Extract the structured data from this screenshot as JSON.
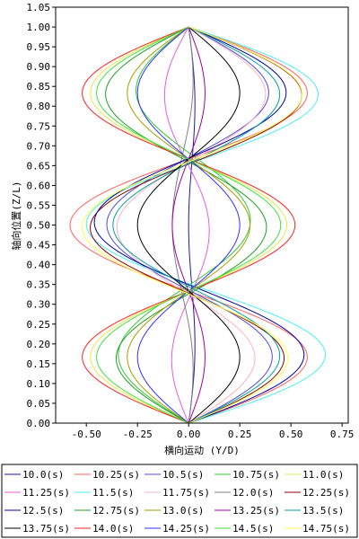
{
  "chart_data": {
    "type": "line",
    "title": "",
    "xlabel": "横向运动 (Y/D)",
    "ylabel": "轴向位置(Z/L)",
    "xlim": [
      -0.65,
      0.78
    ],
    "ylim": [
      0.0,
      1.05
    ],
    "xticks": [
      "-0.50",
      "-0.25",
      "0.00",
      "0.25",
      "0.50",
      "0.75"
    ],
    "xtick_values": [
      -0.5,
      -0.25,
      0.0,
      0.25,
      0.5,
      0.75
    ],
    "yticks": [
      "0.00",
      "0.05",
      "0.10",
      "0.15",
      "0.20",
      "0.25",
      "0.30",
      "0.35",
      "0.40",
      "0.45",
      "0.50",
      "0.55",
      "0.60",
      "0.65",
      "0.70",
      "0.75",
      "0.80",
      "0.85",
      "0.90",
      "0.95",
      "1.00",
      "1.05"
    ],
    "ytick_values": [
      0,
      0.05,
      0.1,
      0.15,
      0.2,
      0.25,
      0.3,
      0.35,
      0.4,
      0.45,
      0.5,
      0.55,
      0.6,
      0.65,
      0.7,
      0.75,
      0.8,
      0.85,
      0.9,
      0.95,
      1.0,
      1.05
    ],
    "grid": false,
    "legend_position": "bottom",
    "curve_model": "y = a1*sin(pi*z) + a2*sin(2*pi*z) + a3*sin(3*pi*z)",
    "series": [
      {
        "name": "10.0(s)",
        "color": "#1a1aa8",
        "a": [
          0.02,
          0.0,
          0.02
        ]
      },
      {
        "name": "10.25(s)",
        "color": "#ff6060",
        "a": [
          0.0,
          0.0,
          0.58
        ]
      },
      {
        "name": "10.5(s)",
        "color": "#4b4bd8",
        "a": [
          0.0,
          0.01,
          0.4
        ]
      },
      {
        "name": "10.75(s)",
        "color": "#2fcc2f",
        "a": [
          0.0,
          -0.05,
          -0.3
        ]
      },
      {
        "name": "11.0(s)",
        "color": "#e8e84a",
        "a": [
          0.0,
          0.0,
          -0.48
        ]
      },
      {
        "name": "11.25(s)",
        "color": "#e060e0",
        "a": [
          0.0,
          0.02,
          -0.1
        ]
      },
      {
        "name": "11.5(s)",
        "color": "#4af0f0",
        "a": [
          0.1,
          0.02,
          0.6
        ]
      },
      {
        "name": "11.75(s)",
        "color": "#ffb0c0",
        "a": [
          0.0,
          -0.03,
          0.35
        ]
      },
      {
        "name": "12.0(s)",
        "color": "#808080",
        "a": [
          -0.04,
          0.0,
          0.04
        ]
      },
      {
        "name": "12.25(s)",
        "color": "#900000",
        "a": [
          0.02,
          -0.05,
          0.5
        ]
      },
      {
        "name": "12.5(s)",
        "color": "#0000a0",
        "a": [
          0.04,
          0.05,
          0.5
        ]
      },
      {
        "name": "12.75(s)",
        "color": "#20a020",
        "a": [
          0.0,
          0.03,
          -0.38
        ]
      },
      {
        "name": "13.0(s)",
        "color": "#a0a000",
        "a": [
          0.0,
          0.0,
          -0.3
        ]
      },
      {
        "name": "13.25(s)",
        "color": "#a000a0",
        "a": [
          0.0,
          0.0,
          0.08
        ]
      },
      {
        "name": "13.5(s)",
        "color": "#00a0a0",
        "a": [
          0.05,
          0.0,
          0.42
        ]
      },
      {
        "name": "13.75(s)",
        "color": "#000000",
        "a": [
          0.0,
          0.0,
          0.25
        ]
      },
      {
        "name": "14.0(s)",
        "color": "#ff2020",
        "a": [
          0.0,
          0.0,
          -0.52
        ]
      },
      {
        "name": "14.25(s)",
        "color": "#3030ff",
        "a": [
          0.0,
          0.0,
          -0.25
        ]
      },
      {
        "name": "14.5(s)",
        "color": "#40e040",
        "a": [
          0.0,
          0.0,
          -0.45
        ]
      },
      {
        "name": "14.75(s)",
        "color": "#ffff40",
        "a": [
          0.0,
          -0.04,
          0.52
        ]
      }
    ]
  }
}
